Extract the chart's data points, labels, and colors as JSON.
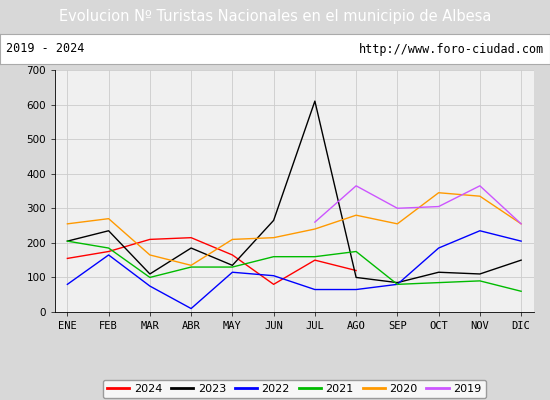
{
  "title": "Evolucion Nº Turistas Nacionales en el municipio de Albesa",
  "subtitle_left": "2019 - 2024",
  "subtitle_right": "http://www.foro-ciudad.com",
  "months": [
    "ENE",
    "FEB",
    "MAR",
    "ABR",
    "MAY",
    "JUN",
    "JUL",
    "AGO",
    "SEP",
    "OCT",
    "NOV",
    "DIC"
  ],
  "ylim": [
    0,
    700
  ],
  "yticks": [
    0,
    100,
    200,
    300,
    400,
    500,
    600,
    700
  ],
  "series": {
    "2024": {
      "color": "#ff0000",
      "values": [
        155,
        175,
        210,
        215,
        165,
        80,
        150,
        120,
        null,
        null,
        null,
        null
      ]
    },
    "2023": {
      "color": "#000000",
      "values": [
        205,
        235,
        110,
        185,
        135,
        265,
        610,
        100,
        85,
        115,
        110,
        150
      ]
    },
    "2022": {
      "color": "#0000ff",
      "values": [
        80,
        165,
        75,
        10,
        115,
        105,
        65,
        65,
        80,
        185,
        235,
        205
      ]
    },
    "2021": {
      "color": "#00bb00",
      "values": [
        205,
        185,
        100,
        130,
        130,
        160,
        160,
        175,
        80,
        85,
        90,
        60
      ]
    },
    "2020": {
      "color": "#ff9900",
      "values": [
        255,
        270,
        165,
        135,
        210,
        215,
        240,
        280,
        255,
        345,
        335,
        255
      ]
    },
    "2019": {
      "color": "#cc55ff",
      "values": [
        null,
        null,
        null,
        null,
        null,
        null,
        260,
        365,
        300,
        305,
        365,
        255
      ]
    }
  },
  "title_bg_color": "#4e7fcc",
  "title_text_color": "#ffffff",
  "title_fontsize": 10.5,
  "subtitle_fontsize": 8.5,
  "plot_bg_color": "#f0f0f0",
  "grid_color": "#cccccc",
  "outer_bg": "#d8d8d8",
  "legend_order": [
    "2024",
    "2023",
    "2022",
    "2021",
    "2020",
    "2019"
  ]
}
